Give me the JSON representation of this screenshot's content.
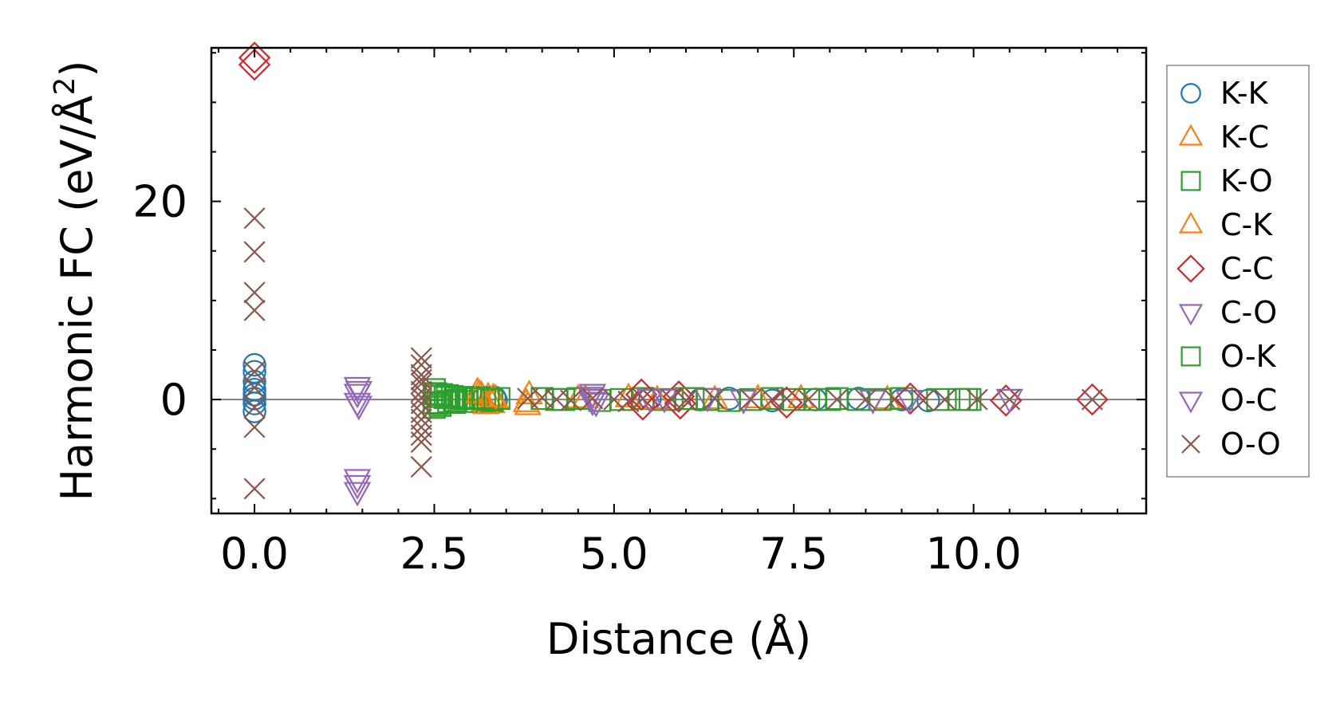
{
  "chart_data": {
    "type": "scatter",
    "title": "",
    "xlabel": "Distance (Å)",
    "ylabel": "Harmonic FC (eV/Å²)",
    "ylabel_main": "Harmonic FC (eV/Å",
    "ylabel_sup": "2",
    "ylabel_end": ")",
    "xlim": [
      -0.6,
      12.4
    ],
    "ylim": [
      -11.5,
      35.5
    ],
    "xticks": [
      0.0,
      2.5,
      5.0,
      7.5,
      10.0
    ],
    "xtick_labels": [
      "0.0",
      "2.5",
      "5.0",
      "7.5",
      "10.0"
    ],
    "yticks": [
      0,
      20
    ],
    "ytick_labels": [
      "0",
      "20"
    ],
    "legend_position": "outside-right",
    "reference_line_y": 0,
    "series": [
      {
        "name": "K-K",
        "marker": "circle",
        "color": "#1f77b4",
        "x": [
          0,
          0,
          0,
          0,
          0,
          0,
          0,
          0,
          3.34,
          3.36,
          5.5,
          6.2,
          6.6,
          7.2,
          7.8,
          8.4,
          9.0,
          9.37
        ],
        "y": [
          3.5,
          2.8,
          1.8,
          1.0,
          0.5,
          0.1,
          -0.4,
          -1.2,
          0.2,
          -0.1,
          0.1,
          0.0,
          0.1,
          -0.1,
          0.0,
          0.1,
          0.0,
          -0.1
        ]
      },
      {
        "name": "K-C",
        "marker": "triangle-up",
        "color": "#ff7f0e",
        "x": [
          3.1,
          3.15,
          3.2,
          3.25,
          3.3,
          3.35,
          3.78,
          3.82,
          4.5,
          5.2,
          6.4,
          7.6,
          8.8
        ],
        "y": [
          0.8,
          0.5,
          -0.2,
          0.3,
          -0.4,
          0.1,
          -0.3,
          0.5,
          0.1,
          0.2,
          0.0,
          0.1,
          0.0
        ]
      },
      {
        "name": "K-O",
        "marker": "square",
        "color": "#2ca02c",
        "x": [
          2.5,
          2.5,
          2.5,
          2.5,
          2.55,
          2.6,
          2.65,
          2.7,
          2.75,
          2.8,
          2.85,
          2.9,
          2.95,
          3.0,
          3.1,
          3.2,
          3.3,
          3.4,
          4.0,
          4.2,
          4.5,
          4.8,
          5.1,
          5.4,
          5.7,
          6.0,
          6.3,
          6.6,
          6.9,
          7.2,
          7.5,
          7.8,
          8.1,
          8.4,
          8.7,
          9.0,
          9.5,
          9.8,
          9.95
        ],
        "y": [
          -0.8,
          1.0,
          0.3,
          -0.3,
          -0.4,
          0.5,
          0.2,
          -0.2,
          0.3,
          -0.1,
          0.2,
          0.1,
          -0.2,
          0.2,
          0.1,
          0.2,
          -0.1,
          0.1,
          0.1,
          0.0,
          0.1,
          -0.1,
          0.0,
          0.1,
          0.0,
          0.1,
          0.0,
          -0.1,
          0.0,
          0.1,
          0.0,
          0.0,
          0.1,
          0.0,
          0.0,
          0.1,
          0.0,
          0.0,
          0.0
        ]
      },
      {
        "name": "C-K",
        "marker": "triangle-up",
        "color": "#ff7f0e",
        "x": [
          3.12,
          3.22,
          3.32,
          3.8,
          4.6,
          5.6,
          7.0
        ],
        "y": [
          0.6,
          -0.5,
          0.2,
          -0.6,
          0.1,
          0.0,
          0.1
        ]
      },
      {
        "name": "C-C",
        "marker": "diamond",
        "color": "#d62728",
        "x": [
          0,
          0,
          5.38,
          5.4,
          5.9,
          5.92,
          7.4,
          9.12,
          10.45,
          11.65
        ],
        "y": [
          34.5,
          33.8,
          0.5,
          -0.5,
          0.3,
          -0.4,
          -0.3,
          0.1,
          -0.1,
          0.0
        ]
      },
      {
        "name": "C-O",
        "marker": "triangle-down",
        "color": "#9467bd",
        "x": [
          1.43,
          1.43,
          1.43,
          1.43,
          1.43,
          1.43,
          4.7,
          4.72,
          4.75,
          5.5,
          6.3,
          8.6,
          9.1,
          10.5
        ],
        "y": [
          1.3,
          0.6,
          -0.3,
          -8.0,
          -8.6,
          -9.3,
          0.6,
          0.1,
          -0.3,
          0.1,
          0.2,
          0.0,
          0.0,
          0.1
        ]
      },
      {
        "name": "O-K",
        "marker": "square",
        "color": "#2ca02c",
        "x": [
          2.52,
          2.58,
          2.68,
          2.78,
          2.88,
          3.05,
          3.25,
          4.3,
          6.1,
          8.0,
          9.9
        ],
        "y": [
          0.6,
          -0.6,
          0.4,
          -0.3,
          0.2,
          0.1,
          0.0,
          0.0,
          0.1,
          0.0,
          0.0
        ]
      },
      {
        "name": "O-C",
        "marker": "triangle-down",
        "color": "#9467bd",
        "x": [
          1.45,
          1.45,
          4.68,
          4.7,
          5.7,
          6.8
        ],
        "y": [
          0.9,
          -0.6,
          0.3,
          -0.2,
          0.1,
          0.0
        ]
      },
      {
        "name": "O-O",
        "marker": "x",
        "color": "#8c564b",
        "x": [
          0,
          0,
          0,
          0,
          0,
          0,
          0,
          0,
          0,
          2.32,
          2.32,
          2.32,
          2.32,
          2.32,
          2.32,
          2.32,
          2.32,
          2.32,
          2.32,
          2.32,
          2.32,
          2.32,
          2.32,
          3.8,
          4.0,
          4.2,
          4.4,
          4.7,
          5.0,
          5.2,
          5.4,
          5.8,
          6.0,
          6.4,
          6.9,
          7.2,
          7.4,
          7.7,
          8.1,
          8.5,
          8.9,
          9.3,
          9.6,
          10.05,
          10.5,
          11.65
        ],
        "y": [
          18.3,
          14.9,
          10.8,
          9.0,
          2.8,
          1.2,
          -0.8,
          -2.8,
          -9.0,
          4.2,
          3.5,
          2.5,
          1.6,
          0.8,
          0.2,
          -0.4,
          -1.3,
          -2.8,
          -3.6,
          -4.3,
          -6.8,
          2.0,
          -2.0,
          0.1,
          0.2,
          0.0,
          -0.1,
          0.1,
          0.0,
          -0.2,
          0.1,
          0.0,
          -0.1,
          0.1,
          0.0,
          0.0,
          0.1,
          0.0,
          0.0,
          0.0,
          0.0,
          -0.1,
          0.0,
          0.0,
          0.0,
          0.0
        ]
      }
    ]
  }
}
